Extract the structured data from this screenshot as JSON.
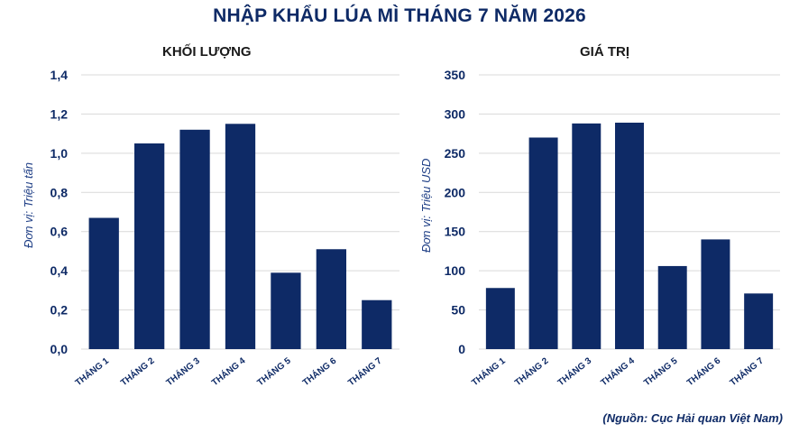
{
  "title": "NHẬP KHẨU LÚA MÌ THÁNG 7 NĂM 2026",
  "source": "(Nguồn: Cục Hải quan Việt Nam)",
  "colors": {
    "bar": "#0e2a66",
    "text": "#0e2a66",
    "grid": "#d9d9d9"
  },
  "chart_data": [
    {
      "type": "bar",
      "title": "KHỐI LƯỢNG",
      "xlabel": "",
      "ylabel": "Đơn vị: Triệu tấn",
      "categories": [
        "THÁNG 1",
        "THÁNG 2",
        "THÁNG 3",
        "THÁNG 4",
        "THÁNG 5",
        "THÁNG 6",
        "THÁNG 7"
      ],
      "values": [
        0.67,
        1.05,
        1.12,
        1.15,
        0.39,
        0.51,
        0.25
      ],
      "ylim": [
        0,
        1.4
      ],
      "yticks": [
        0,
        0.2,
        0.4,
        0.6,
        0.8,
        1.0,
        1.2,
        1.4
      ],
      "ytick_labels": [
        "0,0",
        "0,2",
        "0,4",
        "0,6",
        "0,8",
        "1,0",
        "1,2",
        "1,4"
      ],
      "grid": true
    },
    {
      "type": "bar",
      "title": "GIÁ TRỊ",
      "xlabel": "",
      "ylabel": "Đơn vị: Triệu USD",
      "categories": [
        "THÁNG 1",
        "THÁNG 2",
        "THÁNG 3",
        "THÁNG 4",
        "THÁNG 5",
        "THÁNG 6",
        "THÁNG 7"
      ],
      "values": [
        78,
        270,
        288,
        289,
        106,
        140,
        71
      ],
      "ylim": [
        0,
        350
      ],
      "yticks": [
        0,
        50,
        100,
        150,
        200,
        250,
        300,
        350
      ],
      "ytick_labels": [
        "0",
        "50",
        "100",
        "150",
        "200",
        "250",
        "300",
        "350"
      ],
      "grid": true
    }
  ]
}
